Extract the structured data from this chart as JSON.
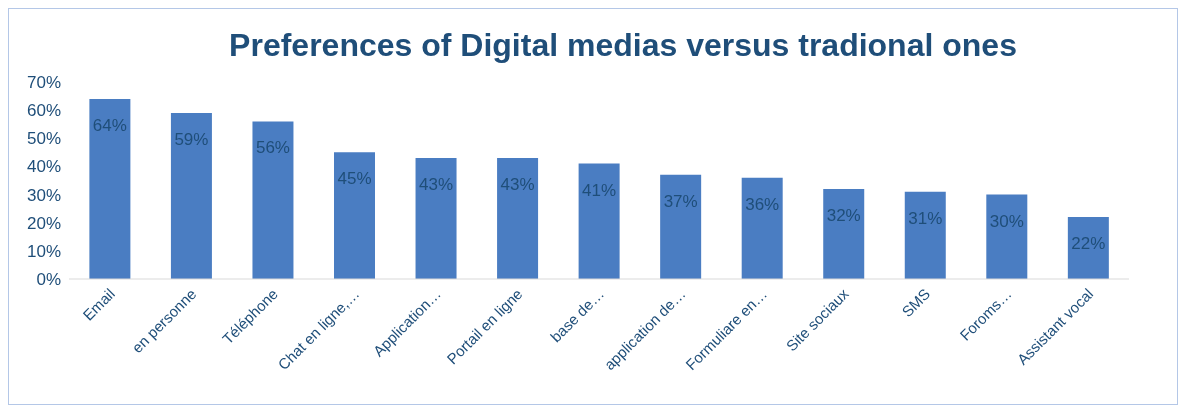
{
  "chart_data": {
    "type": "bar",
    "title": "Preferences of Digital medias versus  tradional ones",
    "categories": [
      "Email",
      "en personne",
      "Téléphone",
      "Chat en ligne,…",
      "Application…",
      "Portail en ligne",
      "base de…",
      "application de…",
      "Formuliare en…",
      "Site sociaux",
      "SMS",
      "Foroms…",
      "Assistant vocal"
    ],
    "values": [
      64,
      59,
      56,
      45,
      43,
      43,
      41,
      37,
      36,
      32,
      31,
      30,
      22
    ],
    "value_labels": [
      "64%",
      "59%",
      "56%",
      "45%",
      "43%",
      "43%",
      "41%",
      "37%",
      "36%",
      "32%",
      "31%",
      "30%",
      "22%"
    ],
    "color": "#4a7dc2",
    "ylim": [
      0,
      70
    ],
    "yticks": [
      {
        "value": 0,
        "label": "0%"
      },
      {
        "value": 10,
        "label": "10%"
      },
      {
        "value": 20,
        "label": "20%"
      },
      {
        "value": 30,
        "label": "30%"
      },
      {
        "value": 40,
        "label": "40%"
      },
      {
        "value": 50,
        "label": "50%"
      },
      {
        "value": 60,
        "label": "60%"
      },
      {
        "value": 70,
        "label": "70%"
      }
    ],
    "grid": false,
    "legend": false
  }
}
